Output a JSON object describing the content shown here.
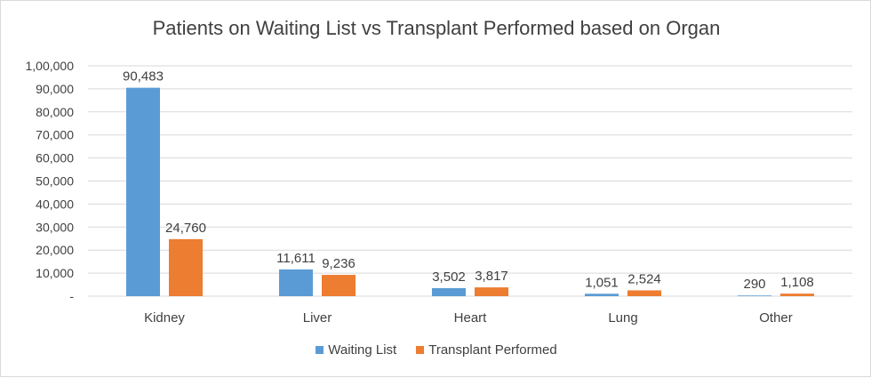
{
  "chart_data": {
    "type": "bar",
    "title": "Patients on Waiting List vs Transplant Performed based on Organ",
    "categories": [
      "Kidney",
      "Liver",
      "Heart",
      "Lung",
      "Other"
    ],
    "series": [
      {
        "name": "Waiting List",
        "values": [
          90483,
          11611,
          3502,
          1051,
          290
        ],
        "labels": [
          "90,483",
          "11,611",
          "3,502",
          "1,051",
          "290"
        ],
        "color": "#5b9bd5"
      },
      {
        "name": "Transplant Performed",
        "values": [
          24760,
          9236,
          3817,
          2524,
          1108
        ],
        "labels": [
          "24,760",
          "9,236",
          "3,817",
          "2,524",
          "1,108"
        ],
        "color": "#ed7d31"
      }
    ],
    "ylim": [
      0,
      100000
    ],
    "yticks": [
      0,
      10000,
      20000,
      30000,
      40000,
      50000,
      60000,
      70000,
      80000,
      90000,
      100000
    ],
    "ytick_labels": [
      "-",
      "10,000",
      "20,000",
      "30,000",
      "40,000",
      "50,000",
      "60,000",
      "70,000",
      "80,000",
      "90,000",
      "1,00,000"
    ],
    "grid": true,
    "legend_position": "bottom",
    "xlabel": "",
    "ylabel": ""
  }
}
